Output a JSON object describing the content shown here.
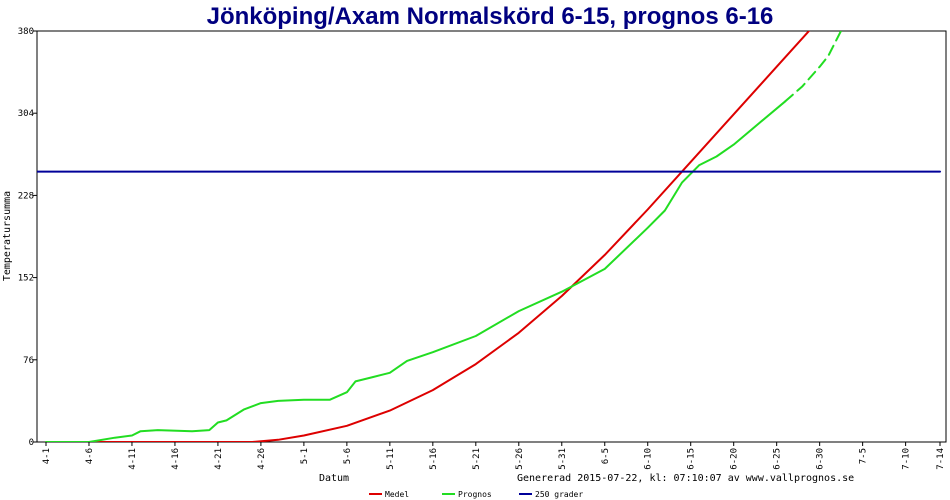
{
  "chart_data": {
    "type": "line",
    "title": "Jönköping/Axam Normalskörd 6-15, prognos 6-16",
    "xlabel": "Datum",
    "ylabel": "Temperatursumma",
    "footer": "Genererad 2015-07-22, kl: 07:10:07 av www.vallprognos.se",
    "ylim": [
      0,
      380
    ],
    "y_ticks": [
      0,
      76,
      152,
      228,
      304,
      380
    ],
    "x_range_days": [
      0,
      104
    ],
    "x_ticks": [
      {
        "day": 0,
        "label": "4-1"
      },
      {
        "day": 5,
        "label": "4-6"
      },
      {
        "day": 10,
        "label": "4-11"
      },
      {
        "day": 15,
        "label": "4-16"
      },
      {
        "day": 20,
        "label": "4-21"
      },
      {
        "day": 25,
        "label": "4-26"
      },
      {
        "day": 30,
        "label": "5-1"
      },
      {
        "day": 35,
        "label": "5-6"
      },
      {
        "day": 40,
        "label": "5-11"
      },
      {
        "day": 45,
        "label": "5-16"
      },
      {
        "day": 50,
        "label": "5-21"
      },
      {
        "day": 55,
        "label": "5-26"
      },
      {
        "day": 60,
        "label": "5-31"
      },
      {
        "day": 65,
        "label": "6-5"
      },
      {
        "day": 70,
        "label": "6-10"
      },
      {
        "day": 75,
        "label": "6-15"
      },
      {
        "day": 80,
        "label": "6-20"
      },
      {
        "day": 85,
        "label": "6-25"
      },
      {
        "day": 90,
        "label": "6-30"
      },
      {
        "day": 95,
        "label": "7-5"
      },
      {
        "day": 100,
        "label": "7-10"
      },
      {
        "day": 104,
        "label": "7-14"
      }
    ],
    "grid": false,
    "legend_position": "bottom",
    "series": [
      {
        "name": "Medel",
        "color": "#dd0000",
        "style": "solid",
        "points": [
          [
            0,
            0
          ],
          [
            10,
            0
          ],
          [
            20,
            0
          ],
          [
            24,
            0
          ],
          [
            27,
            2
          ],
          [
            30,
            6
          ],
          [
            35,
            15
          ],
          [
            40,
            29
          ],
          [
            45,
            48
          ],
          [
            50,
            72
          ],
          [
            55,
            101
          ],
          [
            60,
            135
          ],
          [
            65,
            173
          ],
          [
            70,
            215
          ],
          [
            75,
            259
          ],
          [
            80,
            303
          ],
          [
            85,
            347
          ],
          [
            90,
            391
          ],
          [
            92,
            409
          ]
        ]
      },
      {
        "name": "Prognos",
        "color": "#22dd22",
        "style": "solid",
        "points": [
          [
            0,
            0
          ],
          [
            5,
            0
          ],
          [
            8,
            4
          ],
          [
            10,
            6
          ],
          [
            11,
            10
          ],
          [
            13,
            11
          ],
          [
            17,
            10
          ],
          [
            19,
            11
          ],
          [
            20,
            18
          ],
          [
            21,
            20
          ],
          [
            23,
            30
          ],
          [
            25,
            36
          ],
          [
            27,
            38
          ],
          [
            30,
            39
          ],
          [
            33,
            39
          ],
          [
            35,
            46
          ],
          [
            36,
            56
          ],
          [
            38,
            60
          ],
          [
            40,
            64
          ],
          [
            42,
            75
          ],
          [
            45,
            83
          ],
          [
            50,
            98
          ],
          [
            55,
            121
          ],
          [
            60,
            139
          ],
          [
            65,
            160
          ],
          [
            70,
            198
          ],
          [
            72,
            214
          ],
          [
            74,
            240
          ],
          [
            76,
            256
          ],
          [
            78,
            264
          ],
          [
            80,
            275
          ],
          [
            83,
            295
          ],
          [
            86,
            315
          ]
        ]
      },
      {
        "name": "Prognos",
        "color": "#22dd22",
        "style": "dashed",
        "points": [
          [
            86,
            315
          ],
          [
            88,
            329
          ],
          [
            90,
            347
          ],
          [
            91,
            357
          ],
          [
            93,
            388
          ],
          [
            94,
            410
          ]
        ]
      },
      {
        "name": "250 grader",
        "color": "#000099",
        "style": "solid",
        "points": [
          [
            -1,
            250
          ],
          [
            104,
            250
          ]
        ]
      }
    ],
    "legend": [
      {
        "label": "Medel",
        "color": "#dd0000"
      },
      {
        "label": "Prognos",
        "color": "#22dd22"
      },
      {
        "label": "250 grader",
        "color": "#000099"
      }
    ]
  }
}
